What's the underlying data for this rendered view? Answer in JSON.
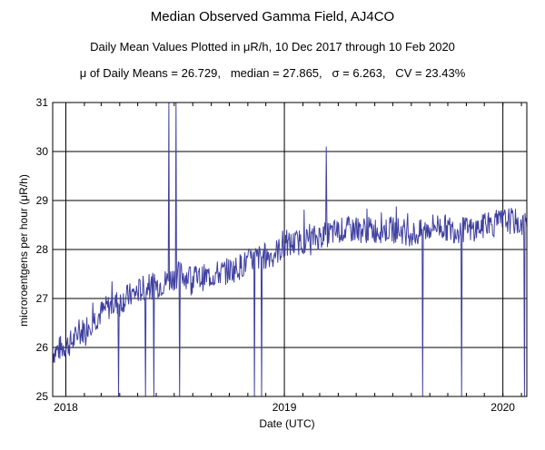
{
  "title": "Median Observed Gamma Field, AJ4CO",
  "subtitle": "Daily Mean Values Plotted in μR/h, 10 Dec 2017 through 10 Feb 2020",
  "stats_line": "μ of Daily Means = 26.729,   median = 27.865,   σ = 6.263,   CV = 23.43%",
  "chart_data": {
    "type": "line",
    "xlabel": "Date (UTC)",
    "ylabel": "microroentgens per hour (μR/h)",
    "ylim": [
      25,
      31
    ],
    "y_ticks": [
      25,
      26,
      27,
      28,
      29,
      30,
      31
    ],
    "xlim": [
      "2017-12-10",
      "2020-02-10"
    ],
    "x_ticks": [
      {
        "date": "2018-01-01",
        "label": "2018"
      },
      {
        "date": "2019-01-01",
        "label": "2019"
      },
      {
        "date": "2020-01-01",
        "label": "2020"
      }
    ],
    "grid": true,
    "line_color": "#4040a0",
    "series": [
      {
        "x": [
          "2017-12-10",
          "2018-01-10",
          "2018-02-10",
          "2018-03-10",
          "2018-04-10",
          "2018-05-10",
          "2018-06-10",
          "2018-07-10",
          "2018-08-10",
          "2018-09-10",
          "2018-10-10",
          "2018-11-10",
          "2018-12-10",
          "2019-01-10",
          "2019-02-10",
          "2019-03-10",
          "2019-04-10",
          "2019-05-10",
          "2019-06-10",
          "2019-07-10",
          "2019-08-10",
          "2019-09-10",
          "2019-10-10",
          "2019-11-10",
          "2019-12-10",
          "2020-01-10",
          "2020-02-10"
        ],
        "values": [
          25.9,
          26.1,
          26.5,
          26.8,
          27.0,
          27.2,
          27.3,
          27.5,
          27.4,
          27.5,
          27.6,
          27.8,
          27.9,
          28.1,
          28.2,
          28.3,
          28.4,
          28.4,
          28.4,
          28.4,
          28.3,
          28.5,
          28.4,
          28.4,
          28.5,
          28.6,
          28.5
        ]
      }
    ],
    "outliers": [
      {
        "date": "2018-03-30",
        "value": 25.0
      },
      {
        "date": "2018-05-14",
        "value": 25.0
      },
      {
        "date": "2018-05-28",
        "value": 25.0
      },
      {
        "date": "2018-06-22",
        "value": 31.0
      },
      {
        "date": "2018-07-04",
        "value": 31.0
      },
      {
        "date": "2018-07-10",
        "value": 25.0
      },
      {
        "date": "2018-11-12",
        "value": 25.0
      },
      {
        "date": "2018-11-24",
        "value": 25.0
      },
      {
        "date": "2019-03-12",
        "value": 30.1
      },
      {
        "date": "2019-08-20",
        "value": 25.0
      },
      {
        "date": "2019-10-24",
        "value": 25.0
      },
      {
        "date": "2020-02-06",
        "value": 25.0
      }
    ]
  }
}
